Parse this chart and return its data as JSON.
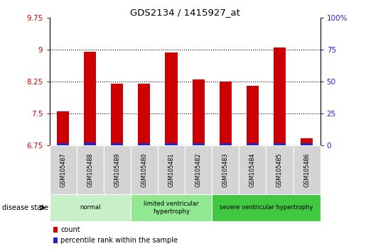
{
  "title": "GDS2134 / 1415927_at",
  "samples": [
    "GSM105487",
    "GSM105488",
    "GSM105489",
    "GSM105480",
    "GSM105481",
    "GSM105482",
    "GSM105483",
    "GSM105484",
    "GSM105485",
    "GSM105486"
  ],
  "count_values": [
    7.55,
    8.95,
    8.2,
    8.2,
    8.93,
    8.3,
    8.25,
    8.15,
    9.05,
    6.92
  ],
  "percentile_values": [
    0.06,
    0.07,
    0.06,
    0.06,
    0.06,
    0.06,
    0.06,
    0.06,
    0.06,
    0.06
  ],
  "bar_base": 6.75,
  "ylim_left": [
    6.75,
    9.75
  ],
  "yticks_left": [
    6.75,
    7.5,
    8.25,
    9.0,
    9.75
  ],
  "ytick_labels_left": [
    "6.75",
    "7.5",
    "8.25",
    "9",
    "9.75"
  ],
  "ylim_right": [
    0,
    100
  ],
  "yticks_right": [
    0,
    25,
    50,
    75,
    100
  ],
  "ytick_labels_right": [
    "0",
    "25",
    "50",
    "75",
    "100%"
  ],
  "hlines": [
    7.5,
    8.25,
    9.0
  ],
  "groups": [
    {
      "label": "normal",
      "start": 0,
      "end": 2,
      "color": "#c8f0c8"
    },
    {
      "label": "limited ventricular\nhypertrophy",
      "start": 3,
      "end": 5,
      "color": "#90e890"
    },
    {
      "label": "severe ventricular hypertrophy",
      "start": 6,
      "end": 9,
      "color": "#40c840"
    }
  ],
  "disease_state_label": "disease state",
  "count_color": "#cc0000",
  "percentile_color": "#2222cc",
  "bar_width": 0.45,
  "bg_color": "#ffffff",
  "legend_count": "count",
  "legend_percentile": "percentile rank within the sample",
  "tick_label_color_left": "#cc0000",
  "tick_label_color_right": "#2222cc",
  "sample_box_color": "#d4d4d4",
  "n_samples": 10
}
